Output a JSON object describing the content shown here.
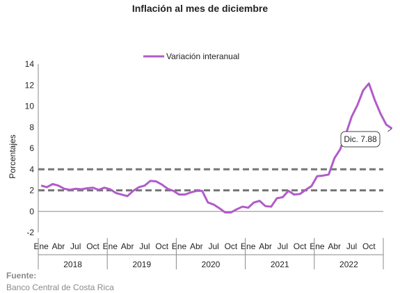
{
  "chart_data": {
    "type": "line",
    "title": "Inflación al mes de diciembre",
    "ylabel": "Porcentajes",
    "ylim": [
      -2,
      14
    ],
    "y_ticks": [
      -2,
      0,
      2,
      4,
      6,
      8,
      10,
      12,
      14
    ],
    "y_tick_colors": {
      "-2": "#e00000"
    },
    "grid": false,
    "legend": "top",
    "month_labels": [
      "Ene",
      "Abr",
      "Jul",
      "Oct"
    ],
    "years": [
      "2018",
      "2019",
      "2020",
      "2021",
      "2022"
    ],
    "series": [
      {
        "name": "Variación interanual",
        "color": "#b05cc8",
        "values": [
          2.45,
          2.3,
          2.6,
          2.45,
          2.15,
          2.05,
          2.15,
          2.1,
          2.2,
          2.25,
          2.05,
          2.25,
          2.1,
          1.75,
          1.6,
          1.45,
          1.95,
          2.3,
          2.45,
          2.9,
          2.85,
          2.55,
          2.15,
          1.95,
          1.6,
          1.6,
          1.8,
          1.95,
          1.95,
          0.85,
          0.65,
          0.3,
          -0.1,
          -0.1,
          0.2,
          0.45,
          0.35,
          0.85,
          1.0,
          0.5,
          0.45,
          1.25,
          1.35,
          1.95,
          1.6,
          1.65,
          2.05,
          2.4,
          3.35,
          3.4,
          3.5,
          5.05,
          5.9,
          7.35,
          9.0,
          10.1,
          11.5,
          12.15,
          10.6,
          9.3,
          8.25,
          7.88
        ]
      }
    ],
    "reference_lines": [
      {
        "value": 4,
        "color": "#777777"
      },
      {
        "value": 2,
        "color": "#777777"
      }
    ],
    "annotation": {
      "text": "Dic. 7.88",
      "value": 7.88
    }
  },
  "source": {
    "label": "Fuente:",
    "text": "Banco Central de Costa Rica"
  }
}
